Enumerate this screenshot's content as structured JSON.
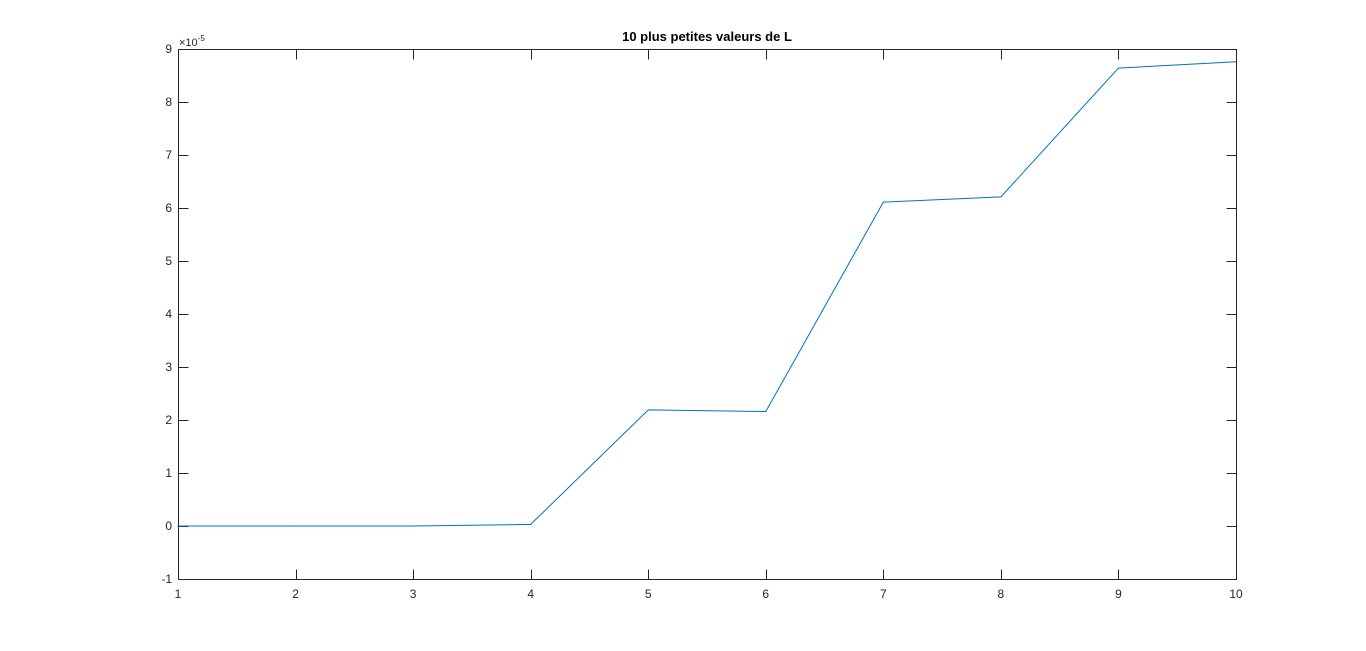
{
  "chart_data": {
    "type": "line",
    "title": "10 plus petites valeurs de L",
    "xlabel": "",
    "ylabel": "",
    "xlim": [
      1,
      10
    ],
    "ylim": [
      -1e-05,
      9e-05
    ],
    "y_exponent_label": "×10",
    "y_exponent_power": "-5",
    "x_ticks": [
      1,
      2,
      3,
      4,
      5,
      6,
      7,
      8,
      9,
      10
    ],
    "x_tick_labels": [
      "1",
      "2",
      "3",
      "4",
      "5",
      "6",
      "7",
      "8",
      "9",
      "10"
    ],
    "y_ticks": [
      -1e-05,
      0,
      1e-05,
      2e-05,
      3e-05,
      4e-05,
      5e-05,
      6e-05,
      7e-05,
      8e-05,
      9e-05
    ],
    "y_tick_labels": [
      "-1",
      "0",
      "1",
      "2",
      "3",
      "4",
      "5",
      "6",
      "7",
      "8",
      "9"
    ],
    "grid": false,
    "series": [
      {
        "x": [
          1,
          2,
          3,
          4,
          5,
          6,
          7,
          8,
          9,
          10
        ],
        "values": [
          0,
          0,
          0,
          3e-07,
          2.19e-05,
          2.16e-05,
          6.11e-05,
          6.21e-05,
          8.64e-05,
          8.76e-05
        ],
        "color": "#0072BD"
      }
    ],
    "axis_color": "#262626"
  }
}
